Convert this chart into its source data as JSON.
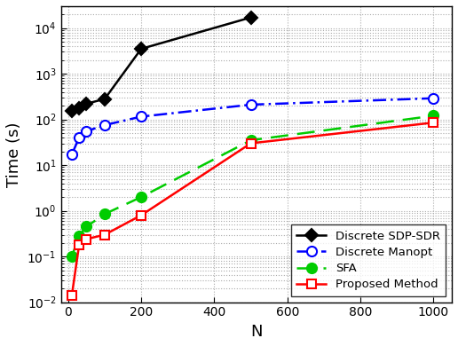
{
  "title": "",
  "xlabel": "N",
  "ylabel": "Time (s)",
  "series": [
    {
      "label": "Discrete SDP-SDR",
      "x": [
        10,
        30,
        50,
        100,
        200,
        500
      ],
      "y": [
        150,
        175,
        220,
        280,
        3500,
        17000
      ],
      "color": "#000000",
      "linewidth": 1.8
    },
    {
      "label": "Discrete Manopt",
      "x": [
        10,
        30,
        50,
        100,
        200,
        500,
        1000
      ],
      "y": [
        17,
        40,
        55,
        75,
        115,
        210,
        290
      ],
      "color": "#0000FF",
      "linewidth": 1.8
    },
    {
      "label": "SFA",
      "x": [
        10,
        30,
        50,
        100,
        200,
        500,
        1000
      ],
      "y": [
        0.1,
        0.28,
        0.45,
        0.85,
        2.0,
        35,
        120
      ],
      "color": "#00CC00",
      "linewidth": 1.8
    },
    {
      "label": "Proposed Method",
      "x": [
        10,
        30,
        50,
        100,
        200,
        500,
        1000
      ],
      "y": [
        0.014,
        0.18,
        0.24,
        0.3,
        0.8,
        30,
        85
      ],
      "color": "#FF0000",
      "linewidth": 1.8
    }
  ],
  "xlim": [
    -20,
    1050
  ],
  "ylim_log": [
    0.01,
    30000
  ],
  "xticks": [
    0,
    200,
    400,
    600,
    800,
    1000
  ],
  "figsize": [
    5.16,
    3.9
  ],
  "dpi": 100
}
